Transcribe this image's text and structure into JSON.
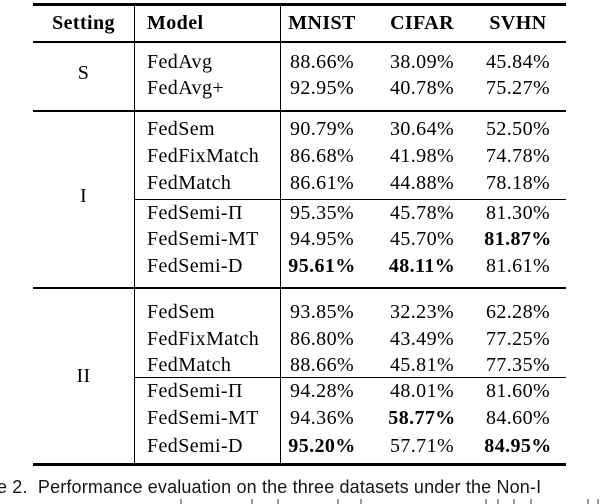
{
  "table": {
    "header": {
      "setting": "Setting",
      "model": "Model",
      "columns": [
        "MNIST",
        "CIFAR",
        "SVHN"
      ]
    },
    "sections": [
      {
        "setting": "S",
        "rows": [
          {
            "model": "FedAvg",
            "values": [
              "88.66%",
              "38.09%",
              "45.84%"
            ],
            "bold": []
          },
          {
            "model": "FedAvg+",
            "values": [
              "92.95%",
              "40.78%",
              "75.27%"
            ],
            "bold": []
          }
        ]
      },
      {
        "setting": "I",
        "rows": [
          {
            "model": "FedSem",
            "values": [
              "90.79%",
              "30.64%",
              "52.50%"
            ],
            "bold": []
          },
          {
            "model": "FedFixMatch",
            "values": [
              "86.68%",
              "41.98%",
              "74.78%"
            ],
            "bold": []
          },
          {
            "model": "FedMatch",
            "values": [
              "86.61%",
              "44.88%",
              "78.18%"
            ],
            "bold": []
          },
          {
            "model": "FedSemi-Π",
            "values": [
              "95.35%",
              "45.78%",
              "81.30%"
            ],
            "bold": []
          },
          {
            "model": "FedSemi-MT",
            "values": [
              "94.95%",
              "45.70%",
              "81.87%"
            ],
            "bold": [
              2
            ]
          },
          {
            "model": "FedSemi-D",
            "values": [
              "95.61%",
              "48.11%",
              "81.61%"
            ],
            "bold": [
              0,
              1
            ]
          }
        ]
      },
      {
        "setting": "II",
        "rows": [
          {
            "model": "FedSem",
            "values": [
              "93.85%",
              "32.23%",
              "62.28%"
            ],
            "bold": []
          },
          {
            "model": "FedFixMatch",
            "values": [
              "86.80%",
              "43.49%",
              "77.25%"
            ],
            "bold": []
          },
          {
            "model": "FedMatch",
            "values": [
              "88.66%",
              "45.81%",
              "77.35%"
            ],
            "bold": []
          },
          {
            "model": "FedSemi-Π",
            "values": [
              "94.28%",
              "48.01%",
              "81.60%"
            ],
            "bold": []
          },
          {
            "model": "FedSemi-MT",
            "values": [
              "94.36%",
              "58.77%",
              "84.60%"
            ],
            "bold": [
              1
            ]
          },
          {
            "model": "FedSemi-D",
            "values": [
              "95.20%",
              "57.71%",
              "84.95%"
            ],
            "bold": [
              0,
              2
            ]
          }
        ]
      }
    ]
  },
  "caption": "e 2.  Performance evaluation on the three datasets under the Non-I"
}
